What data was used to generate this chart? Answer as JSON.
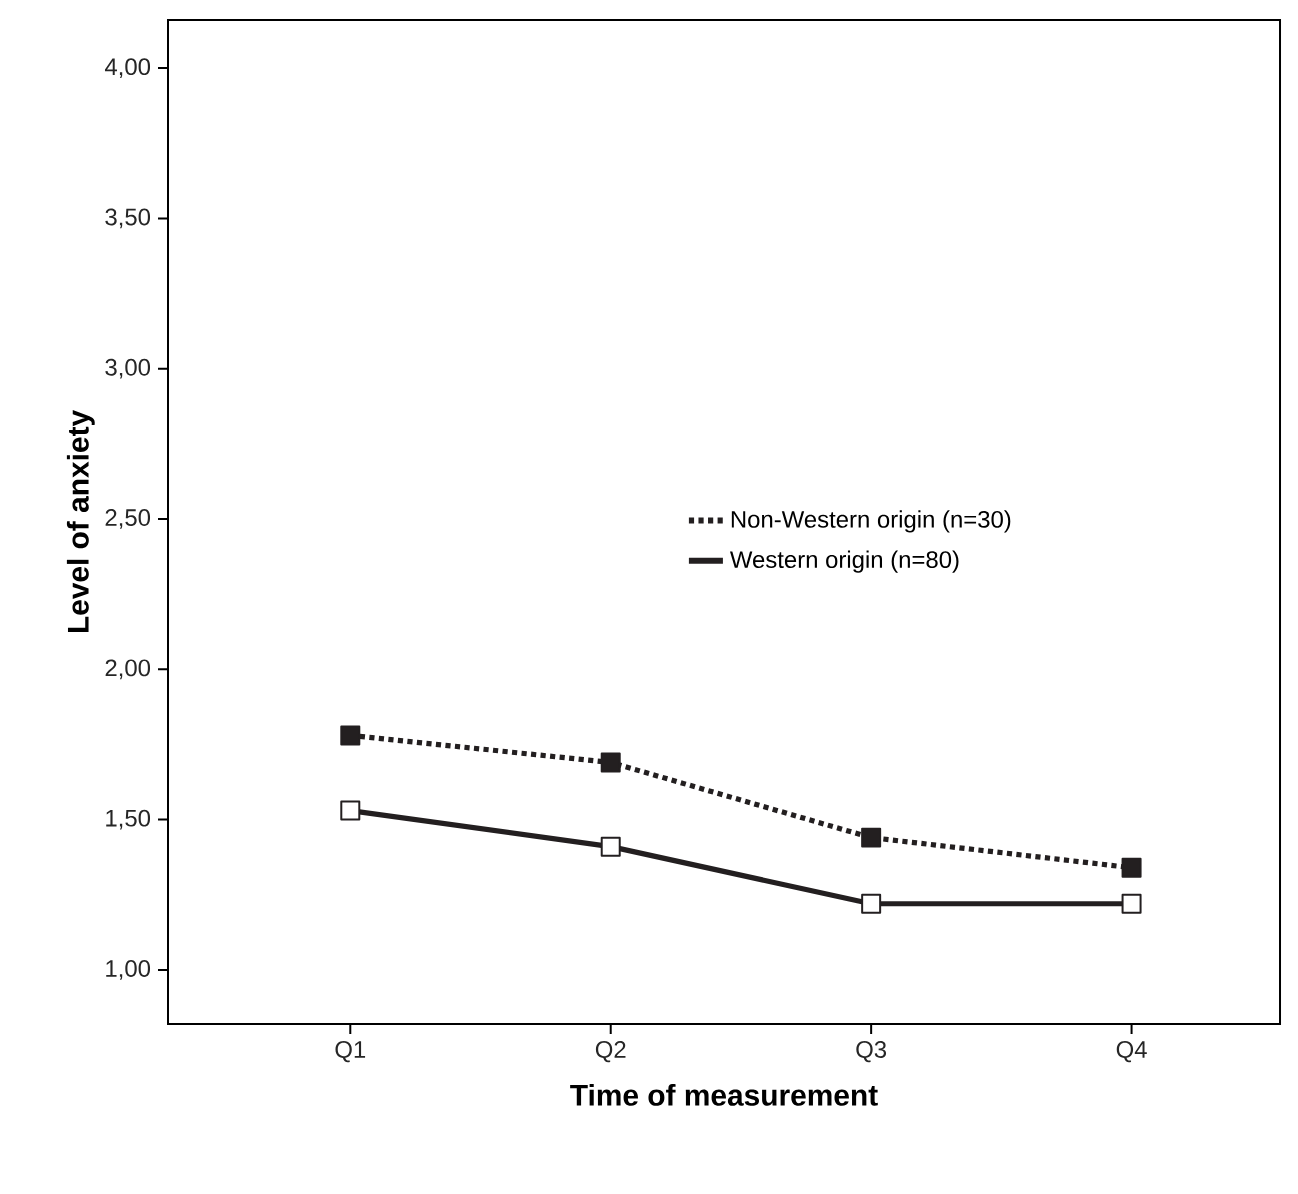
{
  "chart_data": {
    "type": "line",
    "xlabel": "Time of measurement",
    "ylabel": "Level of anxiety",
    "categories": [
      "Q1",
      "Q2",
      "Q3",
      "Q4"
    ],
    "series": [
      {
        "name": "Non-Western origin (n=30)",
        "color": "#231f20",
        "line_style": "dotted",
        "values": [
          1.78,
          1.69,
          1.44,
          1.34
        ]
      },
      {
        "name": "Western origin (n=80)",
        "color": "#231f20",
        "line_style": "solid",
        "values": [
          1.53,
          1.41,
          1.22,
          1.22
        ]
      }
    ],
    "ylim": [
      0.82,
      4.16
    ],
    "yticks": [
      {
        "value": 1.0,
        "label": "1,00"
      },
      {
        "value": 1.5,
        "label": "1,50"
      },
      {
        "value": 2.0,
        "label": "2,00"
      },
      {
        "value": 2.5,
        "label": "2,50"
      },
      {
        "value": 3.0,
        "label": "3,00"
      },
      {
        "value": 3.5,
        "label": "3,50"
      },
      {
        "value": 4.0,
        "label": "4,00"
      }
    ],
    "marker": "square",
    "legend": "right",
    "grid": false
  }
}
